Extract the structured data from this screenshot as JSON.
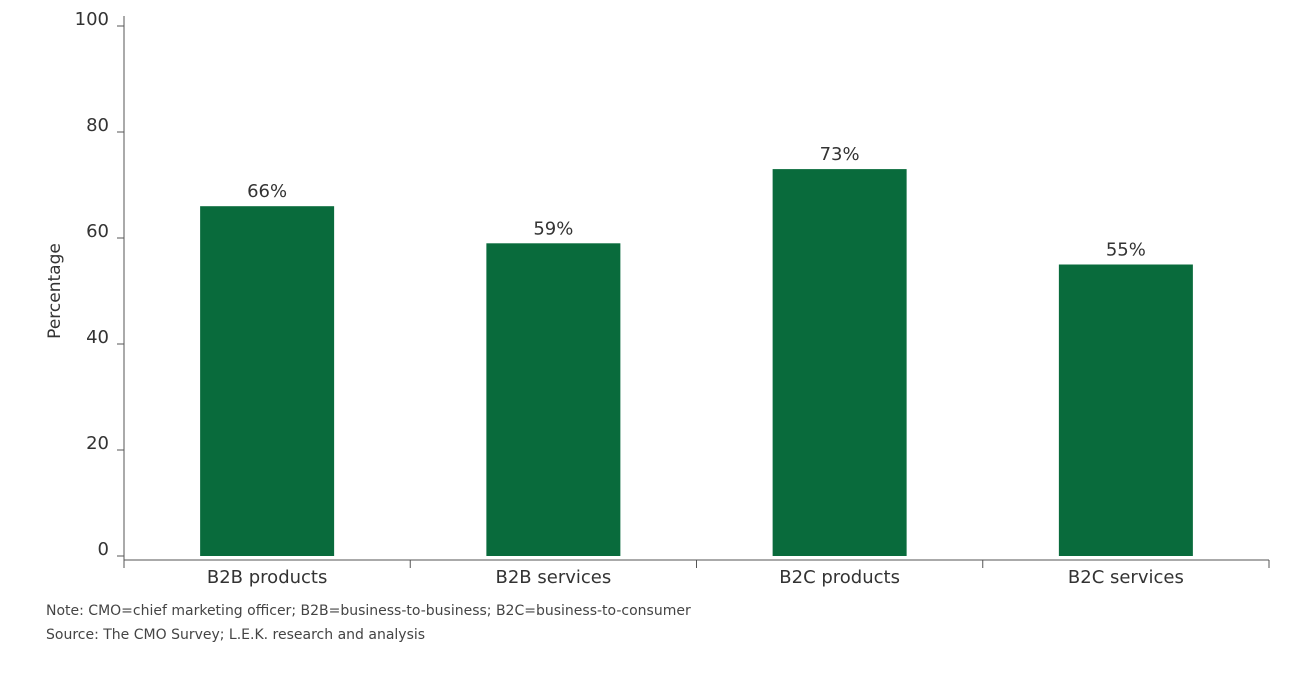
{
  "chart_data": {
    "type": "bar",
    "categories": [
      "B2B products",
      "B2B services",
      "B2C products",
      "B2C services"
    ],
    "values": [
      66,
      59,
      73,
      55
    ],
    "data_labels": [
      "66%",
      "59%",
      "73%",
      "55%"
    ],
    "ylabel": "Percentage",
    "xlabel": "",
    "ylim": [
      0,
      100
    ],
    "yticks": [
      0,
      20,
      40,
      60,
      80,
      100
    ],
    "ytick_labels": [
      "0",
      "20",
      "40",
      "60",
      "80",
      "100"
    ],
    "grid": false,
    "legend": "none",
    "bar_color": "#096b3c"
  },
  "footnotes": {
    "note": "Note: CMO=chief marketing officer; B2B=business-to-business; B2C=business-to-consumer",
    "source": "Source: The CMO Survey; L.E.K. research and analysis"
  }
}
